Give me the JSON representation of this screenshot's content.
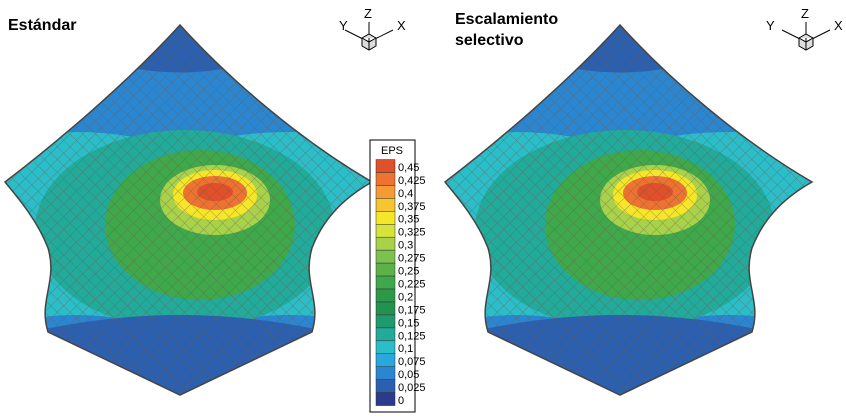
{
  "panels": [
    {
      "title": [
        "Estándar"
      ],
      "axes": [
        "Y",
        "Z",
        "X"
      ]
    },
    {
      "title": [
        "Escalamiento",
        "selectivo"
      ],
      "axes": [
        "Y",
        "Z",
        "X"
      ]
    }
  ],
  "legend": {
    "title": "EPS",
    "levels": [
      "0,45",
      "0,425",
      "0,4",
      "0,375",
      "0,35",
      "0,325",
      "0,3",
      "0,275",
      "0,25",
      "0,225",
      "0,2",
      "0,175",
      "0,15",
      "0,125",
      "0,1",
      "0,075",
      "0,05",
      "0,025",
      "0"
    ],
    "colors": [
      "#e0502a",
      "#ee7230",
      "#f59a35",
      "#f7c530",
      "#f6e62a",
      "#d7e23a",
      "#a8d24a",
      "#7ec24e",
      "#5cb248",
      "#3ea84a",
      "#2a9a4a",
      "#23914f",
      "#1f9a6e",
      "#22aa9a",
      "#2bbdc8",
      "#29a8e0",
      "#2a86d0",
      "#2b5fb0",
      "#2b3a8c"
    ]
  }
}
